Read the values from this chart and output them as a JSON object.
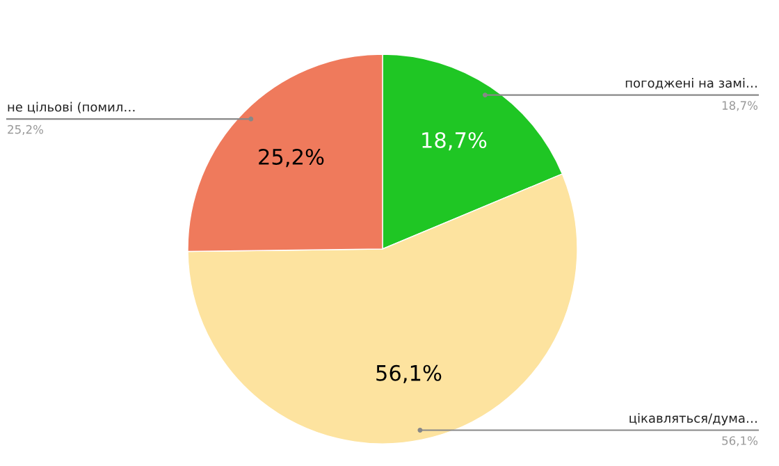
{
  "chart_data": {
    "type": "pie",
    "categories": [
      "погоджені на замі…",
      "цікавляться/дума…",
      "не цільові (помил…"
    ],
    "values": [
      18.7,
      56.1,
      25.2
    ],
    "colors": [
      "#1fc624",
      "#fde39f",
      "#ef7a5c"
    ],
    "value_labels": [
      "18,7%",
      "56,1%",
      "25,2%"
    ]
  }
}
